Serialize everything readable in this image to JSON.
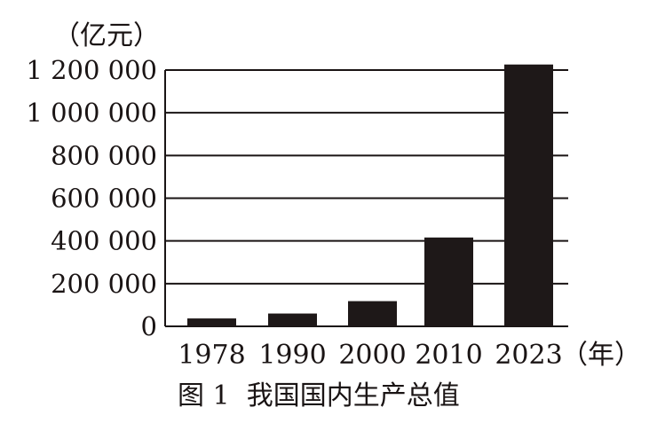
{
  "chart_data": {
    "type": "bar",
    "title": "图 1  我国国内生产总值",
    "ylabel": "（亿元）",
    "xlabel": "（年）",
    "categories": [
      "1978",
      "1990",
      "2000",
      "2010",
      "2023"
    ],
    "values": [
      37000,
      60000,
      118000,
      416000,
      1226000
    ],
    "ylim": [
      0,
      1200000
    ],
    "yticks": [
      0,
      200000,
      400000,
      600000,
      800000,
      1000000,
      1200000
    ],
    "ytick_labels": [
      "0",
      "200 000",
      "400 000",
      "600 000",
      "800 000",
      "1 000 000",
      "1 200 000"
    ],
    "grid": true,
    "bar_color": "#1e1818"
  }
}
